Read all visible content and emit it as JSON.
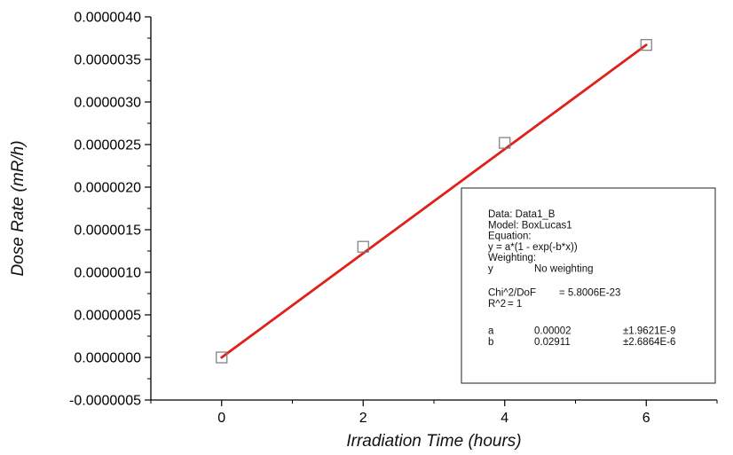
{
  "chart_data": {
    "type": "scatter",
    "title": "",
    "xlabel": "Irradiation Time (hours)",
    "ylabel": "Dose Rate (mR/h)",
    "xlim": [
      -1,
      7
    ],
    "ylim": [
      -5e-07,
      4e-06
    ],
    "x_ticks": [
      {
        "value": 0,
        "label": "0"
      },
      {
        "value": 2,
        "label": "2"
      },
      {
        "value": 4,
        "label": "4"
      },
      {
        "value": 6,
        "label": "6"
      }
    ],
    "y_ticks": [
      {
        "value": -5e-07,
        "label": "-0.0000005"
      },
      {
        "value": 0,
        "label": "0.0000000"
      },
      {
        "value": 5e-07,
        "label": "0.0000005"
      },
      {
        "value": 1e-06,
        "label": "0.0000010"
      },
      {
        "value": 1.5e-06,
        "label": "0.0000015"
      },
      {
        "value": 2e-06,
        "label": "0.0000020"
      },
      {
        "value": 2.5e-06,
        "label": "0.0000025"
      },
      {
        "value": 3e-06,
        "label": "0.0000030"
      },
      {
        "value": 3.5e-06,
        "label": "0.0000035"
      },
      {
        "value": 4e-06,
        "label": "0.0000040"
      }
    ],
    "series": [
      {
        "marker": "open-square",
        "x": [
          0,
          2,
          4,
          6
        ],
        "y": [
          0,
          1.3e-06,
          2.52e-06,
          3.67e-06
        ]
      }
    ],
    "fit": {
      "color": "#e0201b",
      "x": [
        0,
        6
      ],
      "y": [
        0,
        3.67e-06
      ]
    },
    "fit_box": {
      "placement": "bottom-right",
      "lines": [
        "Data: Data1_B",
        "Model: BoxLucas1",
        "Equation:",
        "y = a*(1 - exp(-b*x))",
        "Weighting:"
      ],
      "weighting_row": [
        "y",
        "No weighting"
      ],
      "chi_row": [
        "Chi^2/DoF",
        "= 5.8006E-23"
      ],
      "r2_row": [
        "R^2",
        "=  1"
      ],
      "params": [
        [
          "a",
          "0.00002",
          "±1.9621E-9"
        ],
        [
          "b",
          "0.02911",
          "±2.6864E-6"
        ]
      ]
    },
    "grid": false,
    "colors": {
      "axis": "#000000",
      "marker_stroke": "#7a7a7a",
      "fit_line": "#e0201b"
    }
  }
}
